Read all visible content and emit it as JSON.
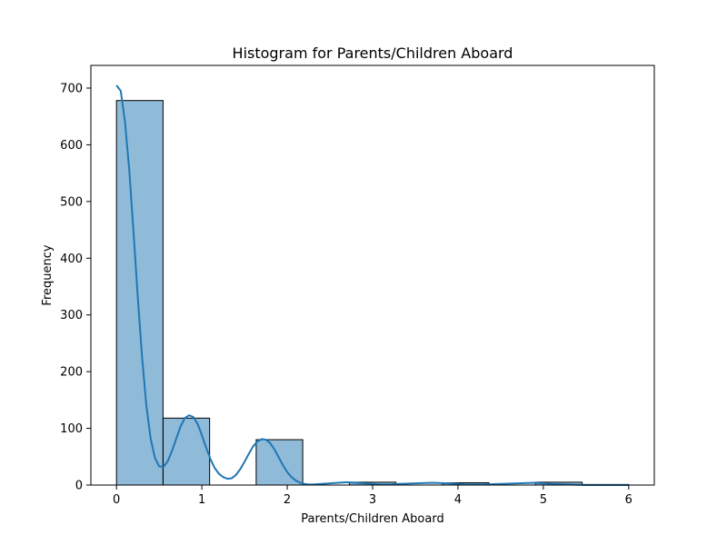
{
  "chart_data": {
    "type": "bar",
    "title": "Histogram for Parents/Children Aboard",
    "xlabel": "Parents/Children Aboard",
    "ylabel": "Frequency",
    "xlim": [
      -0.3,
      6.3
    ],
    "ylim": [
      0,
      740
    ],
    "x_ticks": [
      0,
      1,
      2,
      3,
      4,
      5,
      6
    ],
    "y_ticks": [
      0,
      100,
      200,
      300,
      400,
      500,
      600,
      700
    ],
    "bin_edges": [
      0,
      0.5455,
      1.0909,
      1.6364,
      2.1818,
      2.7273,
      3.2727,
      3.8182,
      4.3636,
      4.9091,
      5.4545,
      6.0
    ],
    "values": [
      678,
      118,
      0,
      80,
      0,
      5,
      0,
      4,
      0,
      5,
      1
    ],
    "bar_color": "#1f77b4",
    "kde": {
      "x": [
        0,
        0.05,
        0.1,
        0.15,
        0.2,
        0.25,
        0.3,
        0.35,
        0.4,
        0.45,
        0.5,
        0.55,
        0.6,
        0.65,
        0.7,
        0.75,
        0.8,
        0.85,
        0.9,
        0.95,
        1.0,
        1.05,
        1.1,
        1.15,
        1.2,
        1.25,
        1.3,
        1.35,
        1.4,
        1.45,
        1.5,
        1.55,
        1.6,
        1.65,
        1.7,
        1.75,
        1.8,
        1.85,
        1.9,
        1.95,
        2.0,
        2.05,
        2.1,
        2.15,
        2.2,
        2.25,
        2.3,
        2.4,
        2.5,
        2.6,
        2.7,
        2.8,
        2.9,
        3.0,
        3.1,
        3.2,
        3.3,
        3.5,
        3.7,
        3.9,
        4.0,
        4.1,
        4.3,
        4.5,
        4.7,
        4.9,
        5.0,
        5.1,
        5.3,
        5.5,
        5.7,
        5.9,
        6.0
      ],
      "y": [
        705,
        695,
        640,
        555,
        445,
        330,
        225,
        140,
        82,
        48,
        33,
        32,
        42,
        60,
        82,
        103,
        118,
        123,
        120,
        108,
        88,
        66,
        46,
        30,
        20,
        14,
        11,
        12,
        18,
        28,
        41,
        55,
        68,
        77,
        81,
        80,
        74,
        63,
        49,
        35,
        23,
        14,
        8,
        4,
        2,
        1,
        1,
        2,
        3,
        4,
        5,
        4,
        3,
        2,
        1,
        1,
        2,
        3,
        4,
        3,
        2,
        1,
        1,
        2,
        3,
        4,
        3,
        2,
        1,
        0,
        0,
        0,
        0
      ]
    }
  }
}
